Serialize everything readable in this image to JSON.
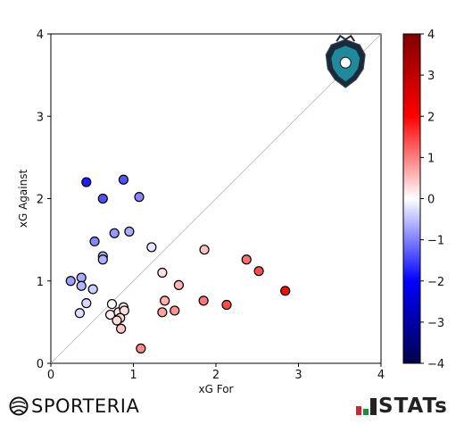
{
  "chart_data": {
    "type": "scatter",
    "xlabel": "xG For",
    "ylabel": "xG Against",
    "xlim": [
      0,
      4
    ],
    "ylim": [
      0,
      4
    ],
    "xticks": [
      "0",
      "1",
      "2",
      "3",
      "4"
    ],
    "yticks": [
      "0",
      "1",
      "2",
      "3",
      "4"
    ],
    "diagonal_reference_line": true,
    "grid": false,
    "colorbar": {
      "range": [
        -4,
        4
      ],
      "ticks": [
        "4",
        "3",
        "2",
        "1",
        "0",
        "−1",
        "−2",
        "−3",
        "−4"
      ],
      "colormap": "seismic (blue-white-red)",
      "low_color": "#00004c",
      "mid_color": "#ffffff",
      "high_color": "#800000"
    },
    "points": [
      {
        "x": 0.43,
        "y": 2.2
      },
      {
        "x": 0.88,
        "y": 2.23
      },
      {
        "x": 0.63,
        "y": 2.0
      },
      {
        "x": 1.07,
        "y": 2.02
      },
      {
        "x": 0.95,
        "y": 1.6
      },
      {
        "x": 0.77,
        "y": 1.58
      },
      {
        "x": 0.53,
        "y": 1.48
      },
      {
        "x": 0.63,
        "y": 1.3
      },
      {
        "x": 0.63,
        "y": 1.26
      },
      {
        "x": 1.22,
        "y": 1.41
      },
      {
        "x": 0.24,
        "y": 1.0
      },
      {
        "x": 0.37,
        "y": 1.04
      },
      {
        "x": 0.37,
        "y": 0.94
      },
      {
        "x": 0.51,
        "y": 0.9
      },
      {
        "x": 0.43,
        "y": 0.73
      },
      {
        "x": 0.35,
        "y": 0.61
      },
      {
        "x": 0.74,
        "y": 0.72
      },
      {
        "x": 0.72,
        "y": 0.59
      },
      {
        "x": 0.82,
        "y": 0.62
      },
      {
        "x": 0.88,
        "y": 0.68
      },
      {
        "x": 0.89,
        "y": 0.64
      },
      {
        "x": 0.84,
        "y": 0.55
      },
      {
        "x": 0.8,
        "y": 0.52
      },
      {
        "x": 0.85,
        "y": 0.42
      },
      {
        "x": 1.09,
        "y": 0.18
      },
      {
        "x": 1.35,
        "y": 1.1
      },
      {
        "x": 1.38,
        "y": 0.76
      },
      {
        "x": 1.35,
        "y": 0.62
      },
      {
        "x": 1.55,
        "y": 0.95
      },
      {
        "x": 1.5,
        "y": 0.64
      },
      {
        "x": 1.86,
        "y": 1.38
      },
      {
        "x": 1.85,
        "y": 0.76
      },
      {
        "x": 2.13,
        "y": 0.71
      },
      {
        "x": 2.37,
        "y": 1.26
      },
      {
        "x": 2.52,
        "y": 1.12
      },
      {
        "x": 2.84,
        "y": 0.88
      }
    ]
  },
  "footer": {
    "left_logo_text": "SPORTERIA",
    "right_logo_text": "STATs"
  },
  "icons": {
    "team_crest": "club-emblem-icon",
    "sporteria_mark": "sporteria-ball-icon",
    "stats_mark": "stats-bars-icon"
  }
}
